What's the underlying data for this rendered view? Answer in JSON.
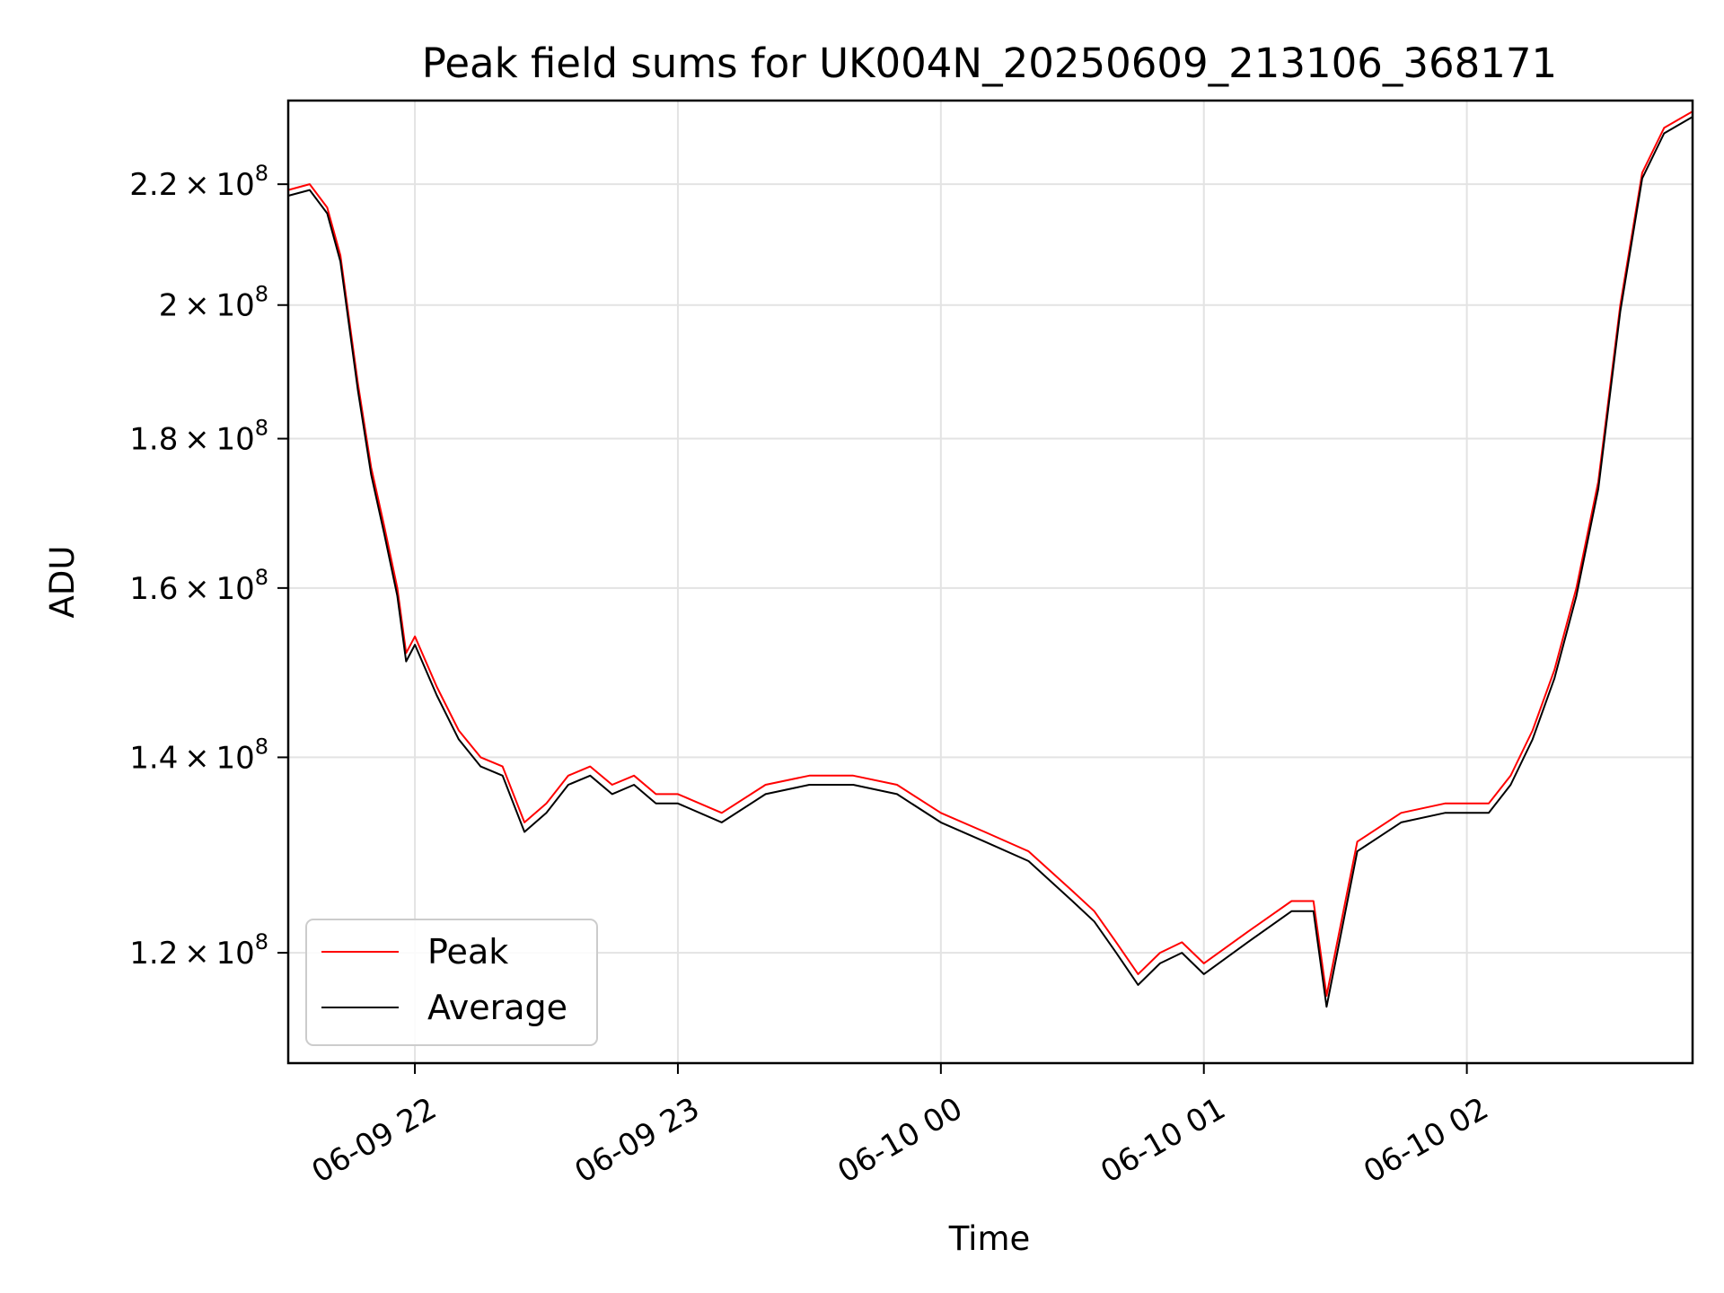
{
  "chart_data": {
    "type": "line",
    "title": "Peak field sums for UK004N_20250609_213106_368171",
    "xlabel": "Time",
    "ylabel": "ADU",
    "x_range": [
      "2025-06-09T21:31:06",
      "2025-06-10T02:51:30"
    ],
    "ylim": [
      110000000,
      235000000
    ],
    "y_scale": "log",
    "grid": true,
    "legend_position": "lower-left",
    "x_ticks": [
      {
        "value": "2025-06-09T22:00:00",
        "label": "06-09 22"
      },
      {
        "value": "2025-06-09T23:00:00",
        "label": "06-09 23"
      },
      {
        "value": "2025-06-10T00:00:00",
        "label": "06-10 00"
      },
      {
        "value": "2025-06-10T01:00:00",
        "label": "06-10 01"
      },
      {
        "value": "2025-06-10T02:00:00",
        "label": "06-10 02"
      }
    ],
    "y_ticks": [
      {
        "value": 120000000,
        "mantissa": "1.2",
        "exponent": "8"
      },
      {
        "value": 140000000,
        "mantissa": "1.4",
        "exponent": "8"
      },
      {
        "value": 160000000,
        "mantissa": "1.6",
        "exponent": "8"
      },
      {
        "value": 180000000,
        "mantissa": "1.8",
        "exponent": "8"
      },
      {
        "value": 200000000,
        "mantissa": "2",
        "exponent": "8"
      },
      {
        "value": 220000000,
        "mantissa": "2.2",
        "exponent": "8"
      }
    ],
    "series": [
      {
        "name": "Peak",
        "color": "#ff0000",
        "x": [
          "2025-06-09T21:31:06",
          "2025-06-09T21:36:00",
          "2025-06-09T21:40:00",
          "2025-06-09T21:43:00",
          "2025-06-09T21:47:00",
          "2025-06-09T21:50:00",
          "2025-06-09T21:53:00",
          "2025-06-09T21:56:00",
          "2025-06-09T21:58:00",
          "2025-06-09T22:00:00",
          "2025-06-09T22:05:00",
          "2025-06-09T22:10:00",
          "2025-06-09T22:15:00",
          "2025-06-09T22:20:00",
          "2025-06-09T22:25:00",
          "2025-06-09T22:30:00",
          "2025-06-09T22:35:00",
          "2025-06-09T22:40:00",
          "2025-06-09T22:45:00",
          "2025-06-09T22:50:00",
          "2025-06-09T22:55:00",
          "2025-06-09T23:00:00",
          "2025-06-09T23:10:00",
          "2025-06-09T23:20:00",
          "2025-06-09T23:30:00",
          "2025-06-09T23:40:00",
          "2025-06-09T23:50:00",
          "2025-06-10T00:00:00",
          "2025-06-10T00:10:00",
          "2025-06-10T00:20:00",
          "2025-06-10T00:30:00",
          "2025-06-10T00:35:00",
          "2025-06-10T00:40:00",
          "2025-06-10T00:45:00",
          "2025-06-10T00:50:00",
          "2025-06-10T00:55:00",
          "2025-06-10T01:00:00",
          "2025-06-10T01:10:00",
          "2025-06-10T01:20:00",
          "2025-06-10T01:25:00",
          "2025-06-10T01:28:00",
          "2025-06-10T01:35:00",
          "2025-06-10T01:45:00",
          "2025-06-10T01:55:00",
          "2025-06-10T02:05:00",
          "2025-06-10T02:10:00",
          "2025-06-10T02:15:00",
          "2025-06-10T02:20:00",
          "2025-06-10T02:25:00",
          "2025-06-10T02:30:00",
          "2025-06-10T02:35:00",
          "2025-06-10T02:40:00",
          "2025-06-10T02:45:00",
          "2025-06-10T02:51:30"
        ],
        "y": [
          219000000,
          220000000,
          216000000,
          208000000,
          188000000,
          176000000,
          168000000,
          160000000,
          152000000,
          154000000,
          148000000,
          143000000,
          140000000,
          139000000,
          133000000,
          135000000,
          138000000,
          139000000,
          137000000,
          138000000,
          136000000,
          136000000,
          134000000,
          137000000,
          138000000,
          138000000,
          137000000,
          134000000,
          132000000,
          130000000,
          126000000,
          124000000,
          121000000,
          118000000,
          120000000,
          121000000,
          119000000,
          122000000,
          125000000,
          125000000,
          116000000,
          131000000,
          134000000,
          135000000,
          135000000,
          138000000,
          143000000,
          150000000,
          160000000,
          174000000,
          200000000,
          222000000,
          230000000,
          233000000
        ]
      },
      {
        "name": "Average",
        "color": "#000000",
        "x": [
          "2025-06-09T21:31:06",
          "2025-06-09T21:36:00",
          "2025-06-09T21:40:00",
          "2025-06-09T21:43:00",
          "2025-06-09T21:47:00",
          "2025-06-09T21:50:00",
          "2025-06-09T21:53:00",
          "2025-06-09T21:56:00",
          "2025-06-09T21:58:00",
          "2025-06-09T22:00:00",
          "2025-06-09T22:05:00",
          "2025-06-09T22:10:00",
          "2025-06-09T22:15:00",
          "2025-06-09T22:20:00",
          "2025-06-09T22:25:00",
          "2025-06-09T22:30:00",
          "2025-06-09T22:35:00",
          "2025-06-09T22:40:00",
          "2025-06-09T22:45:00",
          "2025-06-09T22:50:00",
          "2025-06-09T22:55:00",
          "2025-06-09T23:00:00",
          "2025-06-09T23:10:00",
          "2025-06-09T23:20:00",
          "2025-06-09T23:30:00",
          "2025-06-09T23:40:00",
          "2025-06-09T23:50:00",
          "2025-06-10T00:00:00",
          "2025-06-10T00:10:00",
          "2025-06-10T00:20:00",
          "2025-06-10T00:30:00",
          "2025-06-10T00:35:00",
          "2025-06-10T00:40:00",
          "2025-06-10T00:45:00",
          "2025-06-10T00:50:00",
          "2025-06-10T00:55:00",
          "2025-06-10T01:00:00",
          "2025-06-10T01:10:00",
          "2025-06-10T01:20:00",
          "2025-06-10T01:25:00",
          "2025-06-10T01:28:00",
          "2025-06-10T01:35:00",
          "2025-06-10T01:45:00",
          "2025-06-10T01:55:00",
          "2025-06-10T02:05:00",
          "2025-06-10T02:10:00",
          "2025-06-10T02:15:00",
          "2025-06-10T02:20:00",
          "2025-06-10T02:25:00",
          "2025-06-10T02:30:00",
          "2025-06-10T02:35:00",
          "2025-06-10T02:40:00",
          "2025-06-10T02:45:00",
          "2025-06-10T02:51:30"
        ],
        "y": [
          218000000,
          219000000,
          215000000,
          207000000,
          187000000,
          175000000,
          167000000,
          159000000,
          151000000,
          153000000,
          147000000,
          142000000,
          139000000,
          138000000,
          132000000,
          134000000,
          137000000,
          138000000,
          136000000,
          137000000,
          135000000,
          135000000,
          133000000,
          136000000,
          137000000,
          137000000,
          136000000,
          133000000,
          131000000,
          129000000,
          125000000,
          123000000,
          120000000,
          117000000,
          119000000,
          120000000,
          118000000,
          121000000,
          124000000,
          124000000,
          115000000,
          130000000,
          133000000,
          134000000,
          134000000,
          137000000,
          142000000,
          149000000,
          159000000,
          173000000,
          199000000,
          221000000,
          229000000,
          232000000
        ]
      }
    ]
  }
}
